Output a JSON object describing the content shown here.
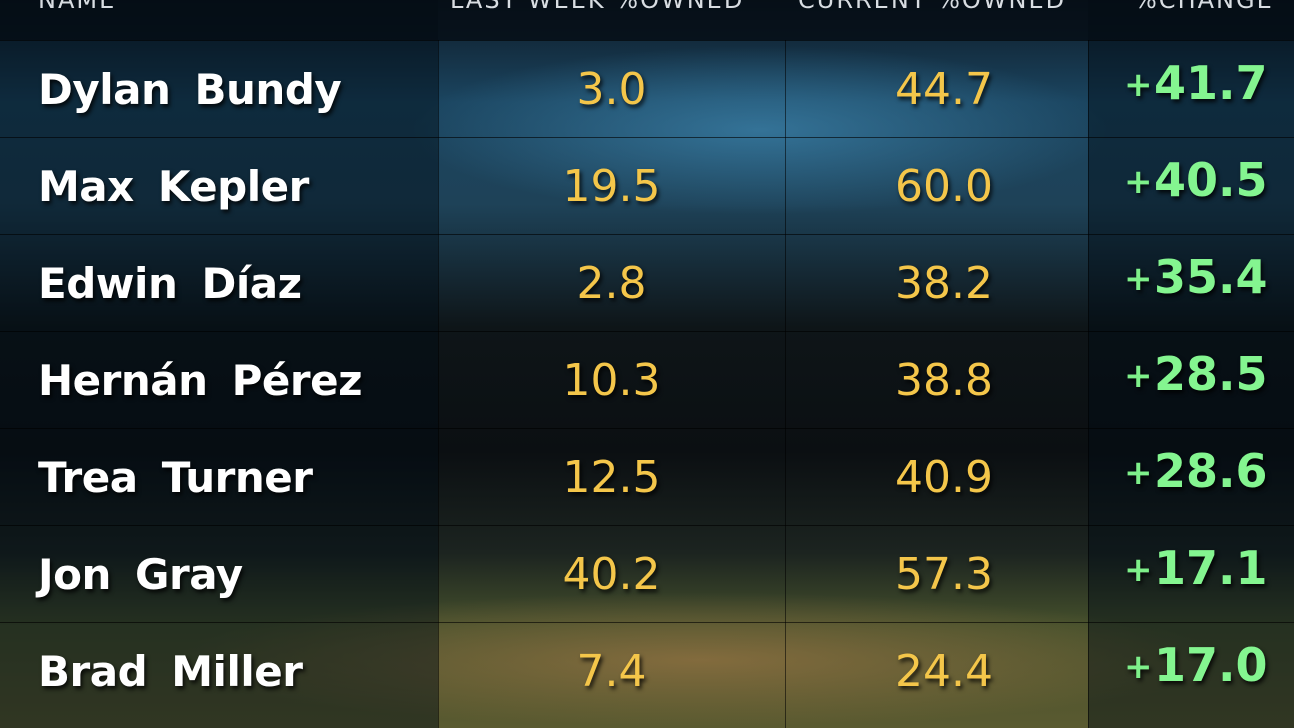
{
  "header": {
    "name": "NAME",
    "last_week": "LAST WEEK %OWNED",
    "current": "CURRENT %OWNED",
    "change": "%CHANGE"
  },
  "rows": [
    {
      "name": "Dylan Bundy",
      "last_week": "3.0",
      "current": "44.7",
      "change_sign": "+",
      "change": "41.7"
    },
    {
      "name": "Max Kepler",
      "last_week": "19.5",
      "current": "60.0",
      "change_sign": "+",
      "change": "40.5"
    },
    {
      "name": "Edwin Díaz",
      "last_week": "2.8",
      "current": "38.2",
      "change_sign": "+",
      "change": "35.4"
    },
    {
      "name": "Hernán Pérez",
      "last_week": "10.3",
      "current": "38.8",
      "change_sign": "+",
      "change": "28.5"
    },
    {
      "name": "Trea Turner",
      "last_week": "12.5",
      "current": "40.9",
      "change_sign": "+",
      "change": "28.6"
    },
    {
      "name": "Jon Gray",
      "last_week": "40.2",
      "current": "57.3",
      "change_sign": "+",
      "change": "17.1"
    },
    {
      "name": "Brad Miller",
      "last_week": "7.4",
      "current": "24.4",
      "change_sign": "+",
      "change": "17.0"
    }
  ]
}
